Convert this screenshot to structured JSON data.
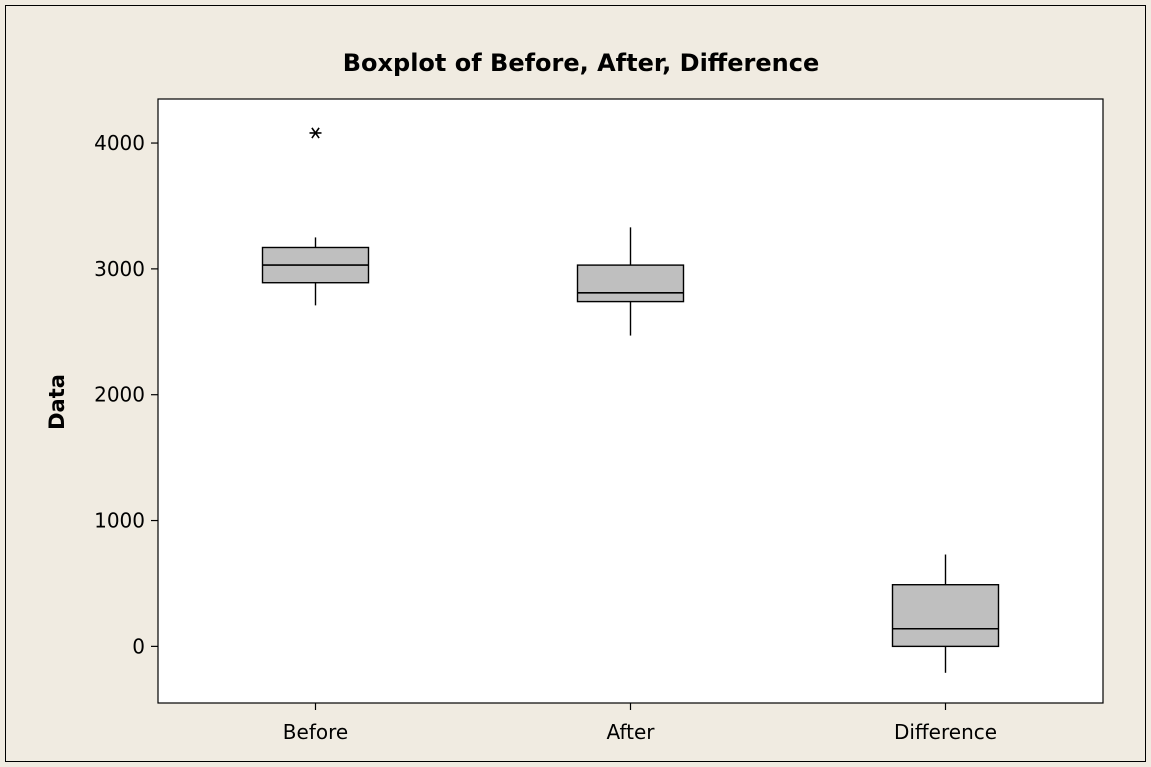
{
  "chart_data": {
    "type": "boxplot",
    "title": "Boxplot of Before, After, Difference",
    "xlabel": "",
    "ylabel": "Data",
    "ylim": [
      -450,
      4350
    ],
    "yticks": [
      0,
      1000,
      2000,
      3000,
      4000
    ],
    "grid": false,
    "categories": [
      "Before",
      "After",
      "Difference"
    ],
    "boxes": [
      {
        "category": "Before",
        "whisker_low": 2710,
        "q1": 2890,
        "median": 3030,
        "q3": 3170,
        "whisker_high": 3250,
        "outliers": [
          4080
        ]
      },
      {
        "category": "After",
        "whisker_low": 2470,
        "q1": 2740,
        "median": 2810,
        "q3": 3030,
        "whisker_high": 3330,
        "outliers": []
      },
      {
        "category": "Difference",
        "whisker_low": -210,
        "q1": 0,
        "median": 140,
        "q3": 490,
        "whisker_high": 730,
        "outliers": []
      }
    ],
    "colors": {
      "box_fill": "#bfbfbf",
      "stroke": "#000000",
      "page_background": "#f0ebe1",
      "plot_background": "#ffffff"
    }
  }
}
